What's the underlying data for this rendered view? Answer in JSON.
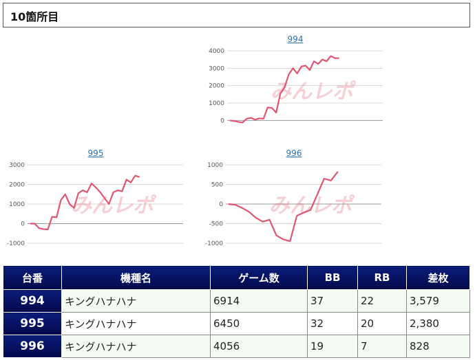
{
  "section_title": "10箇所目",
  "watermark": "みんレポ",
  "colors": {
    "line": "#e0556f",
    "header_bg": "#02084a",
    "grid": "#d8d8d8"
  },
  "charts": [
    {
      "label": "994",
      "y_ticks": [
        "4000",
        "3000",
        "2000",
        "1000",
        "0"
      ],
      "ylim": [
        -500,
        4000
      ],
      "values": [
        0,
        -30,
        -80,
        -120,
        100,
        150,
        50,
        120,
        100,
        750,
        720,
        450,
        1550,
        1900,
        2650,
        3000,
        2700,
        3100,
        3150,
        2900,
        3400,
        3250,
        3500,
        3400,
        3700,
        3580,
        3579
      ]
    },
    {
      "label": "995",
      "y_ticks": [
        "3000",
        "2000",
        "1000",
        "0",
        "-1000"
      ],
      "ylim": [
        -1000,
        3000
      ],
      "values": [
        0,
        0,
        -230,
        -280,
        -300,
        350,
        320,
        1200,
        1500,
        1000,
        800,
        1550,
        1700,
        1600,
        2050,
        1850,
        1600,
        1300,
        1000,
        1600,
        1700,
        1650,
        2250,
        2100,
        2450,
        2380
      ]
    },
    {
      "label": "996",
      "y_ticks": [
        "1000",
        "500",
        "0",
        "-500",
        "-1000"
      ],
      "ylim": [
        -1000,
        1000
      ],
      "values": [
        0,
        -20,
        -100,
        -200,
        -350,
        -450,
        -400,
        -800,
        -900,
        -950,
        -300,
        -220,
        -150,
        250,
        650,
        600,
        828
      ]
    }
  ],
  "table": {
    "headers": [
      "台番",
      "機種名",
      "ゲーム数",
      "BB",
      "RB",
      "差枚"
    ],
    "rows": [
      [
        "994",
        "キングハナハナ",
        "6914",
        "37",
        "22",
        "3,579"
      ],
      [
        "995",
        "キングハナハナ",
        "6450",
        "32",
        "20",
        "2,380"
      ],
      [
        "996",
        "キングハナハナ",
        "4056",
        "19",
        "7",
        "828"
      ]
    ]
  }
}
